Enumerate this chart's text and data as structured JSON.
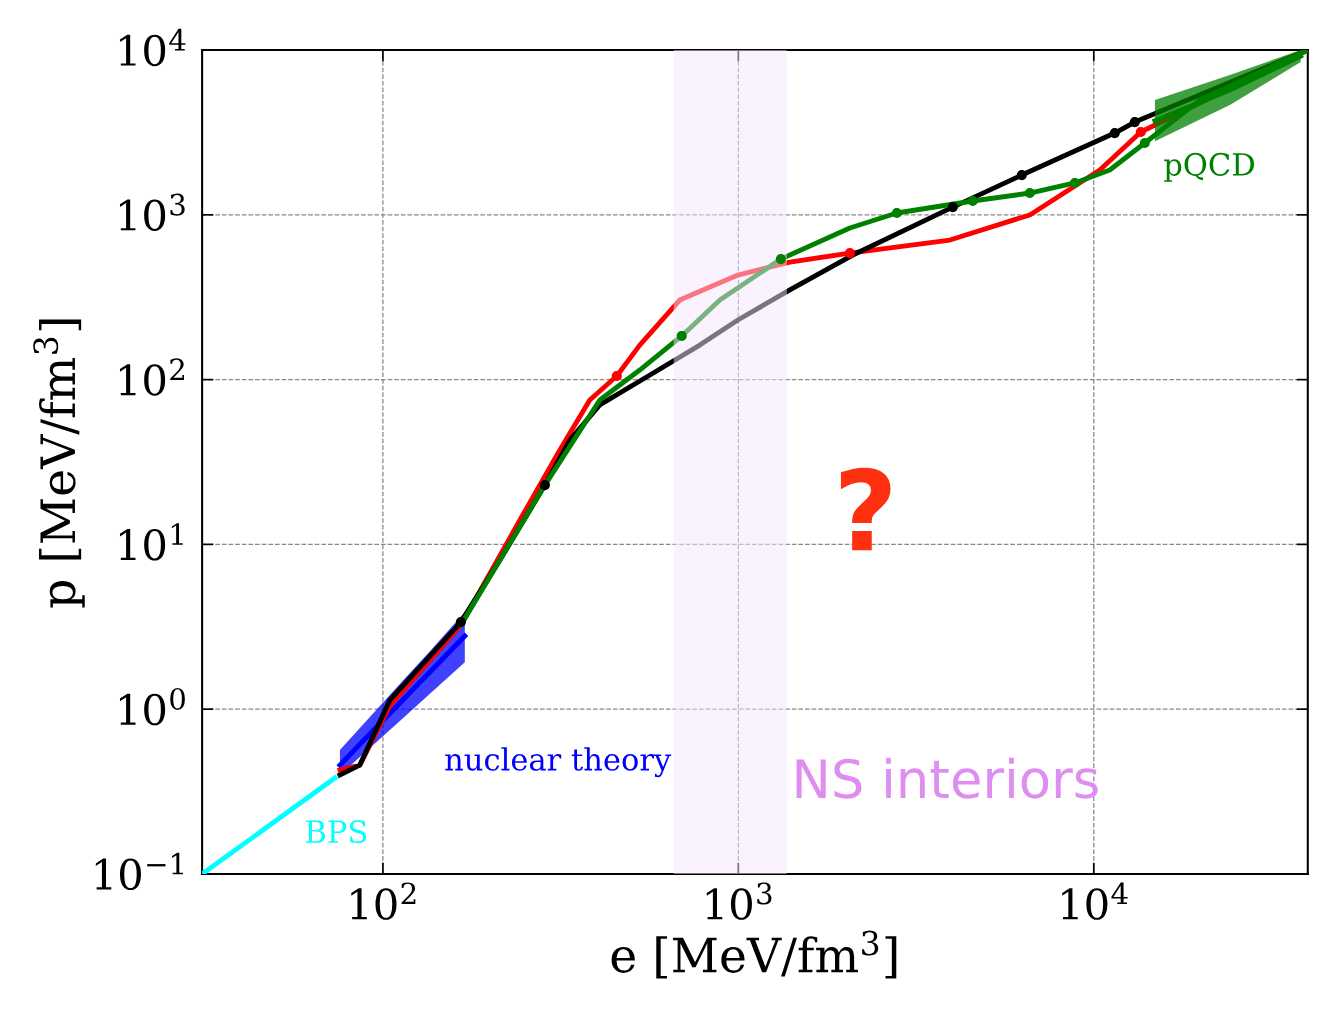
{
  "chart_data": {
    "type": "line",
    "xlabel": "e [MeV/fm$^{3}$]",
    "ylabel": "p [MeV/fm$^{3}$]",
    "log": "xy",
    "xlim": [
      31,
      40000
    ],
    "ylim": [
      0.1,
      10000
    ],
    "xticks": [
      {
        "value": 100,
        "label": "10$^{2}$"
      },
      {
        "value": 1000,
        "label": "10$^{3}$"
      },
      {
        "value": 10000,
        "label": "10$^{4}$"
      }
    ],
    "yticks": [
      {
        "value": 0.1,
        "label": "10$^{−1}$"
      },
      {
        "value": 1,
        "label": "10$^{0}$"
      },
      {
        "value": 10,
        "label": "10$^{1}$"
      },
      {
        "value": 100,
        "label": "10$^{2}$"
      },
      {
        "value": 1000,
        "label": "10$^{3}$"
      },
      {
        "value": 10000,
        "label": "10$^{4}$"
      }
    ],
    "grid": true,
    "legend": false,
    "series": [
      {
        "name": "BPS",
        "color": "#00ffff",
        "x": [
          31,
          48.1,
          73.3
        ],
        "values": [
          0.1,
          0.198,
          0.383
        ]
      },
      {
        "name": "nuclear theory",
        "color": "#0000ff",
        "x": [
          75.7,
          91.9,
          111.6,
          135.6,
          170
        ],
        "values": [
          0.458,
          0.708,
          1.09,
          1.68,
          2.78
        ],
        "lower": [
          0.399,
          0.582,
          0.848,
          1.24,
          1.93
        ],
        "upper": [
          0.565,
          0.898,
          1.42,
          2.25,
          3.89
        ]
      },
      {
        "color": "#ff0000",
        "x": [
          75.7,
          86.1,
          104.6,
          165.7,
          242.9,
          314.7,
          382,
          455,
          528,
          684,
          997,
          1396,
          2059,
          3936,
          6607,
          10397,
          13560,
          40000
        ],
        "values": [
          0.428,
          0.458,
          1.05,
          3.24,
          14.06,
          37.4,
          75.2,
          105.2,
          162,
          304,
          431,
          517,
          586,
          703,
          998,
          1870,
          3180,
          10000
        ]
      },
      {
        "color": "#000000",
        "x": [
          75.7,
          86.1,
          104.6,
          165.7,
          213.4,
          285.6,
          335.7,
          407.6,
          564,
          779,
          997,
          1396,
          2099,
          4012,
          6272,
          11455,
          13040,
          40000
        ],
        "values": [
          0.399,
          0.458,
          1.137,
          3.38,
          8.04,
          22.9,
          42.9,
          70.2,
          106.7,
          162,
          230,
          350,
          570,
          1114,
          1743,
          3135,
          3656,
          10000
        ]
      },
      {
        "color": "#008000",
        "x": [
          165.7,
          285.6,
          407.6,
          528,
          693,
          887,
          1317,
          2059,
          2792,
          4566,
          6607,
          8843,
          11092,
          13915,
          19860,
          40000
        ],
        "values": [
          3.24,
          22.9,
          75.2,
          114.3,
          184,
          304,
          539,
          832,
          1026,
          1213,
          1356,
          1560,
          1870,
          2727,
          4970,
          10000
        ]
      },
      {
        "color": "#ff0000",
        "type": "scatter",
        "marker": "circle",
        "x": [
          455,
          2059,
          13560
        ],
        "values": [
          105.2,
          586,
          3180
        ]
      },
      {
        "color": "#000000",
        "type": "scatter",
        "marker": "circle",
        "x": [
          165.7,
          285.6,
          4012,
          6272,
          11455,
          13040
        ],
        "values": [
          3.38,
          22.9,
          1114,
          1743,
          3135,
          3656
        ]
      },
      {
        "color": "#008000",
        "type": "scatter",
        "marker": "circle",
        "x": [
          693,
          1317,
          2792,
          4566,
          6607,
          8843,
          13915
        ],
        "values": [
          184,
          539,
          1026,
          1213,
          1356,
          1560,
          2727
        ]
      },
      {
        "name": "pQCD",
        "color": "#008000",
        "x": [
          14860,
          24140,
          38200
        ],
        "values": [
          3720,
          5720,
          9200
        ],
        "lower": [
          2800,
          4640,
          8450
        ],
        "upper": [
          4970,
          7050,
          10000
        ]
      }
    ],
    "bands": [
      {
        "axis": "x",
        "from": 658,
        "to": 1369,
        "label": "NS interiors",
        "color": "#f5e6fd"
      }
    ],
    "annotations": [
      "?"
    ]
  }
}
